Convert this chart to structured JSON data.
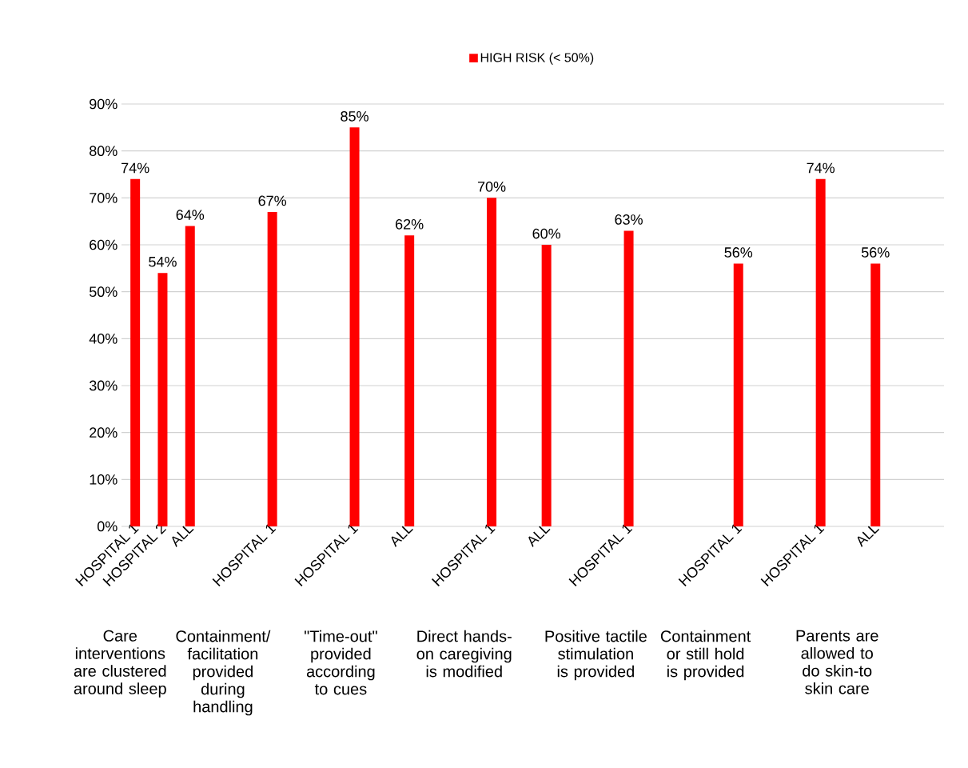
{
  "chart_data": {
    "type": "bar",
    "categories": [
      "HOSPITAL 1",
      "HOSPITAL 2",
      "ALL",
      null,
      null,
      "HOSPITAL 1",
      null,
      null,
      "HOSPITAL 1",
      null,
      "ALL",
      null,
      null,
      "HOSPITAL 1",
      null,
      "ALL",
      null,
      null,
      "HOSPITAL 1",
      null,
      null,
      null,
      "HOSPITAL 1",
      null,
      null,
      "HOSPITAL 1",
      null,
      "ALL",
      null,
      null
    ],
    "series": [
      {
        "name": "HIGH RISK (< 50%)",
        "color": "#ff0000",
        "values": [
          74,
          54,
          64,
          null,
          null,
          67,
          null,
          null,
          85,
          null,
          62,
          null,
          null,
          70,
          null,
          60,
          null,
          null,
          63,
          null,
          null,
          null,
          56,
          null,
          null,
          74,
          null,
          56,
          null,
          null
        ],
        "value_labels": [
          "74%",
          "54%",
          "64%",
          null,
          null,
          "67%",
          null,
          null,
          "85%",
          null,
          "62%",
          null,
          null,
          "70%",
          null,
          "60%",
          null,
          null,
          "63%",
          null,
          null,
          null,
          "56%",
          null,
          null,
          "74%",
          null,
          "56%",
          null,
          null
        ]
      }
    ],
    "ylim": [
      0,
      90
    ],
    "yticks": [
      {
        "value": 0,
        "label": "0%"
      },
      {
        "value": 10,
        "label": "10%"
      },
      {
        "value": 20,
        "label": "20%"
      },
      {
        "value": 30,
        "label": "30%"
      },
      {
        "value": 40,
        "label": "40%"
      },
      {
        "value": 50,
        "label": "50%"
      },
      {
        "value": 60,
        "label": "60%"
      },
      {
        "value": 70,
        "label": "70%"
      },
      {
        "value": 80,
        "label": "80%"
      },
      {
        "value": 90,
        "label": "90%"
      }
    ],
    "grid": "y",
    "legend": "top",
    "annotations": [
      "Care interventions are clustered around sleep",
      "Containment/ facilitation provided during handling",
      "\"Time-out\" provided according to cues",
      "Direct hands-on caregiving is modified",
      "Positive tactile stimulation is provided",
      "Containment or still hold is provided",
      "Parents are allowed to do skin-to skin care"
    ]
  }
}
